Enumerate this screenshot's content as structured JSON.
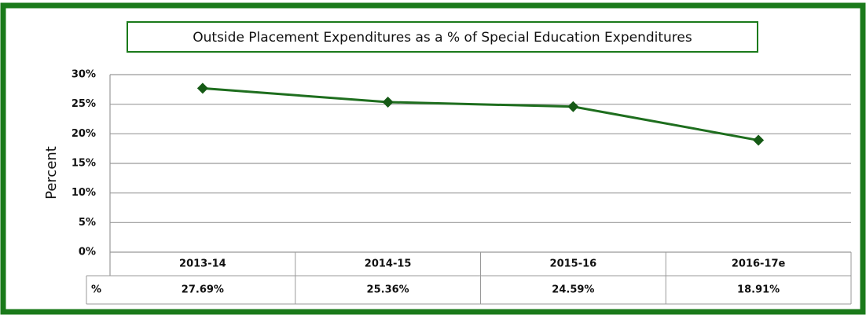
{
  "chart_data": {
    "type": "line",
    "title": "Outside Placement Expenditures as a % of Special Education Expenditures",
    "y_label": "Percent",
    "categories": [
      "2013-14",
      "2014-15",
      "2015-16",
      "2016-17e"
    ],
    "series": [
      {
        "name": "%",
        "color": "#1e6e1e",
        "values": [
          27.69,
          25.36,
          24.59,
          18.91
        ],
        "value_labels": [
          "27.69%",
          "25.36%",
          "24.59%",
          "18.91%"
        ]
      }
    ],
    "ylim": [
      0,
      30
    ],
    "yticks": [
      {
        "value": 0,
        "label": "0%"
      },
      {
        "value": 5,
        "label": "5%"
      },
      {
        "value": 10,
        "label": "10%"
      },
      {
        "value": 15,
        "label": "15%"
      },
      {
        "value": 20,
        "label": "20%"
      },
      {
        "value": 25,
        "label": "25%"
      },
      {
        "value": 30,
        "label": "30%"
      }
    ],
    "grid": true
  }
}
